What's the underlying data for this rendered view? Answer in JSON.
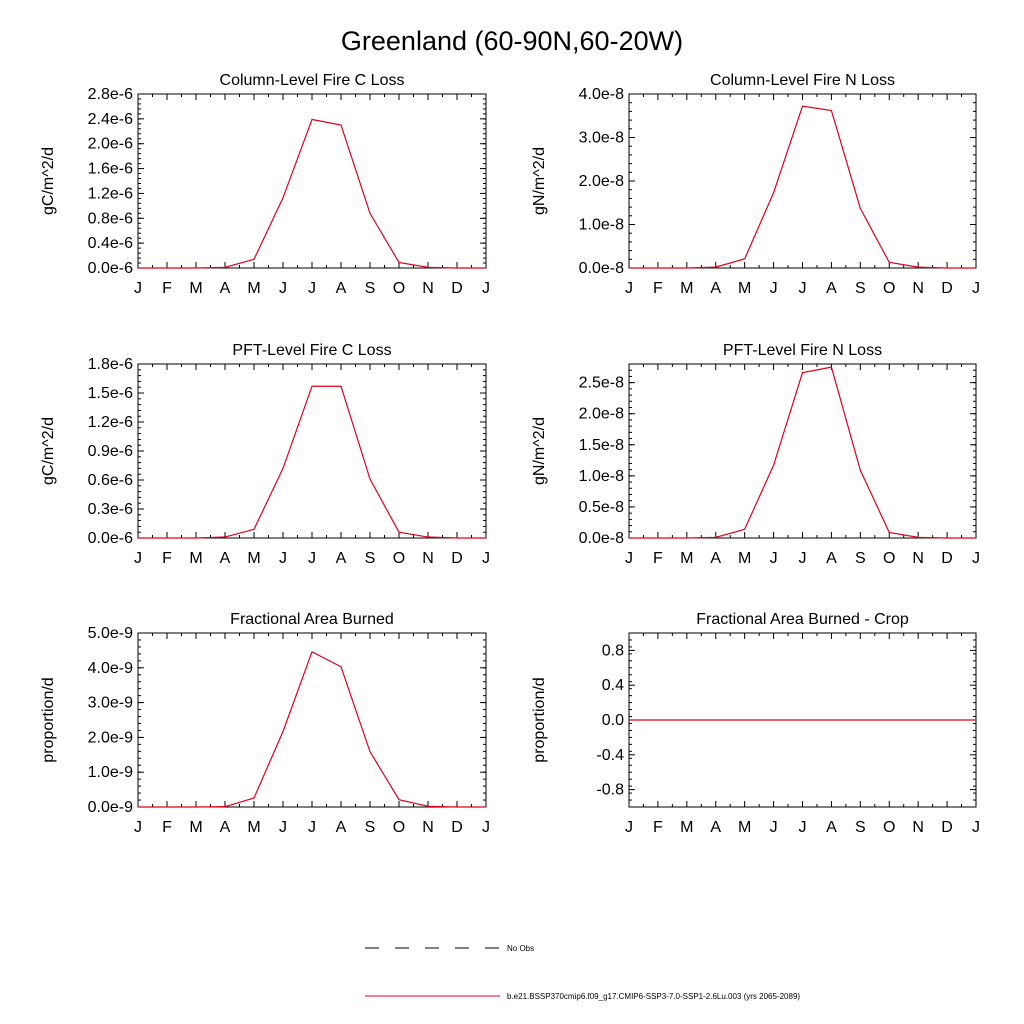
{
  "figure": {
    "title": "Greenland (60-90N,60-20W)"
  },
  "legend": {
    "entries": [
      {
        "label": "No Obs",
        "style": "dashed",
        "color": "#000000"
      },
      {
        "label": "b.e21.BSSP370cmip6.f09_g17.CMIP6-SSP3-7.0-SSP1-2.6Lu.003 (yrs 2065-2089)",
        "style": "solid",
        "color": "#e0001b"
      }
    ]
  },
  "colors": {
    "series": "#e0001b",
    "axis": "#000000",
    "background": "#ffffff"
  },
  "chart_data": [
    {
      "type": "line",
      "title": "Column-Level Fire C Loss",
      "xlabel": "",
      "ylabel": "gC/m^2/d",
      "categories": [
        "J",
        "F",
        "M",
        "A",
        "M",
        "J",
        "J",
        "A",
        "S",
        "O",
        "N",
        "D",
        "J"
      ],
      "ylim": [
        0,
        2.8e-06
      ],
      "yticks": [
        0,
        4e-07,
        8e-07,
        1.2e-06,
        1.6e-06,
        2e-06,
        2.4e-06,
        2.8e-06
      ],
      "yticklabels": [
        "0.0e-6",
        "0.4e-6",
        "0.8e-6",
        "1.2e-6",
        "1.6e-6",
        "2.0e-6",
        "2.4e-6",
        "2.8e-6"
      ],
      "series": [
        {
          "values": [
            0,
            0,
            0,
            1e-08,
            1.4e-07,
            1.13e-06,
            2.39e-06,
            2.3e-06,
            8.8e-07,
            9e-08,
            1e-08,
            0,
            0
          ]
        }
      ]
    },
    {
      "type": "line",
      "title": "Column-Level Fire N Loss",
      "xlabel": "",
      "ylabel": "gN/m^2/d",
      "categories": [
        "J",
        "F",
        "M",
        "A",
        "M",
        "J",
        "J",
        "A",
        "S",
        "O",
        "N",
        "D",
        "J"
      ],
      "ylim": [
        0,
        4e-08
      ],
      "yticks": [
        0,
        1e-08,
        2e-08,
        3e-08,
        4e-08
      ],
      "yticklabels": [
        "0.0e-8",
        "1.0e-8",
        "2.0e-8",
        "3.0e-8",
        "4.0e-8"
      ],
      "series": [
        {
          "values": [
            0,
            0,
            0,
            2e-10,
            2.1e-09,
            1.73e-08,
            3.72e-08,
            3.62e-08,
            1.37e-08,
            1.3e-09,
            2e-10,
            0,
            0
          ]
        }
      ]
    },
    {
      "type": "line",
      "title": "PFT-Level Fire C Loss",
      "xlabel": "",
      "ylabel": "gC/m^2/d",
      "categories": [
        "J",
        "F",
        "M",
        "A",
        "M",
        "J",
        "J",
        "A",
        "S",
        "O",
        "N",
        "D",
        "J"
      ],
      "ylim": [
        0,
        1.8e-06
      ],
      "yticks": [
        0,
        3e-07,
        6e-07,
        9e-07,
        1.2e-06,
        1.5e-06,
        1.8e-06
      ],
      "yticklabels": [
        "0.0e-6",
        "0.3e-6",
        "0.6e-6",
        "0.9e-6",
        "1.2e-6",
        "1.5e-6",
        "1.8e-6"
      ],
      "series": [
        {
          "values": [
            0,
            0,
            0,
            1e-08,
            9e-08,
            7.2e-07,
            1.57e-06,
            1.57e-06,
            6.1e-07,
            6e-08,
            1e-08,
            0,
            0
          ]
        }
      ]
    },
    {
      "type": "line",
      "title": "PFT-Level Fire N Loss",
      "xlabel": "",
      "ylabel": "gN/m^2/d",
      "categories": [
        "J",
        "F",
        "M",
        "A",
        "M",
        "J",
        "J",
        "A",
        "S",
        "O",
        "N",
        "D",
        "J"
      ],
      "ylim": [
        0,
        2.8e-08
      ],
      "yticks": [
        0,
        5e-09,
        1e-08,
        1.5e-08,
        2e-08,
        2.5e-08
      ],
      "yticklabels": [
        "0.0e-8",
        "0.5e-8",
        "1.0e-8",
        "1.5e-8",
        "2.0e-8",
        "2.5e-8"
      ],
      "series": [
        {
          "values": [
            0,
            0,
            0,
            1e-10,
            1.4e-09,
            1.17e-08,
            2.66e-08,
            2.75e-08,
            1.09e-08,
            9e-10,
            1e-10,
            0,
            0
          ]
        }
      ]
    },
    {
      "type": "line",
      "title": "Fractional Area Burned",
      "xlabel": "",
      "ylabel": "proportion/d",
      "categories": [
        "J",
        "F",
        "M",
        "A",
        "M",
        "J",
        "J",
        "A",
        "S",
        "O",
        "N",
        "D",
        "J"
      ],
      "ylim": [
        0,
        5e-09
      ],
      "yticks": [
        0,
        1e-09,
        2e-09,
        3e-09,
        4e-09,
        5e-09
      ],
      "yticklabels": [
        "0.0e-9",
        "1.0e-9",
        "2.0e-9",
        "3.0e-9",
        "4.0e-9",
        "5.0e-9"
      ],
      "series": [
        {
          "values": [
            0,
            0,
            0,
            1e-11,
            2.6e-10,
            2.17e-09,
            4.46e-09,
            4.03e-09,
            1.59e-09,
            2.1e-10,
            2e-11,
            0,
            0
          ]
        }
      ]
    },
    {
      "type": "line",
      "title": "Fractional Area Burned - Crop",
      "xlabel": "",
      "ylabel": "proportion/d",
      "categories": [
        "J",
        "F",
        "M",
        "A",
        "M",
        "J",
        "J",
        "A",
        "S",
        "O",
        "N",
        "D",
        "J"
      ],
      "ylim": [
        -1.0,
        1.0
      ],
      "yticks": [
        -0.8,
        -0.4,
        0,
        0.4,
        0.8
      ],
      "yticklabels": [
        "-0.8",
        "-0.4",
        "0.0",
        "0.4",
        "0.8"
      ],
      "series": [
        {
          "values": [
            0,
            0,
            0,
            0,
            0,
            0,
            0,
            0,
            0,
            0,
            0,
            0,
            0
          ]
        }
      ]
    }
  ]
}
